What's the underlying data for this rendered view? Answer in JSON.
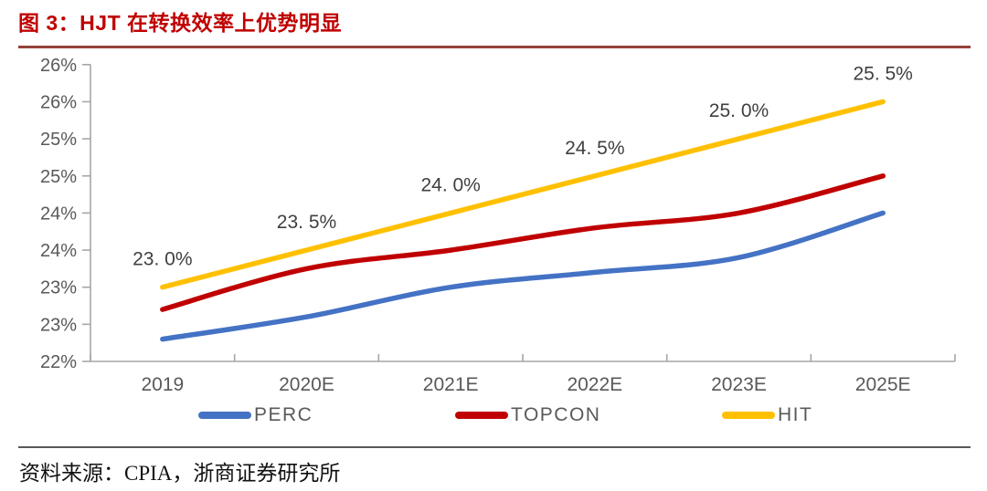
{
  "header": {
    "title": "图 3：HJT 在转换效率上优势明显"
  },
  "footer": {
    "source": "资料来源：CPIA，浙商证券研究所"
  },
  "colors": {
    "title_red": "#c00000",
    "title_rule": "#96403c",
    "axis_line": "#a6a6a6",
    "axis_text": "#595959",
    "data_label_text": "#404040",
    "footer_rule": "#595959",
    "perc_blue": "#4472c4",
    "topcon_red": "#c00000",
    "hit_yellow": "#ffc000"
  },
  "chart_data": {
    "type": "line",
    "title": "",
    "xlabel": "",
    "ylabel": "",
    "categories": [
      "2019",
      "2020E",
      "2021E",
      "2022E",
      "2023E",
      "2025E"
    ],
    "ylim": [
      22,
      26
    ],
    "ytick_step": 0.5,
    "ytick_labels_bottom_to_top": [
      "22%",
      "23%",
      "23%",
      "24%",
      "24%",
      "25%",
      "25%",
      "26%",
      "26%"
    ],
    "grid": false,
    "smooth": true,
    "legend_position": "bottom",
    "series": [
      {
        "name": "PERC",
        "color": "#4472c4",
        "values": [
          22.3,
          22.6,
          23.0,
          23.2,
          23.4,
          24.0
        ]
      },
      {
        "name": "TOPCON",
        "color": "#c00000",
        "values": [
          22.7,
          23.25,
          23.5,
          23.8,
          24.0,
          24.5
        ]
      },
      {
        "name": "HIT",
        "color": "#ffc000",
        "values": [
          23.0,
          23.5,
          24.0,
          24.5,
          25.0,
          25.5
        ],
        "point_labels": [
          "23. 0%",
          "23. 5%",
          "24. 0%",
          "24. 5%",
          "25. 0%",
          "25. 5%"
        ]
      }
    ]
  }
}
